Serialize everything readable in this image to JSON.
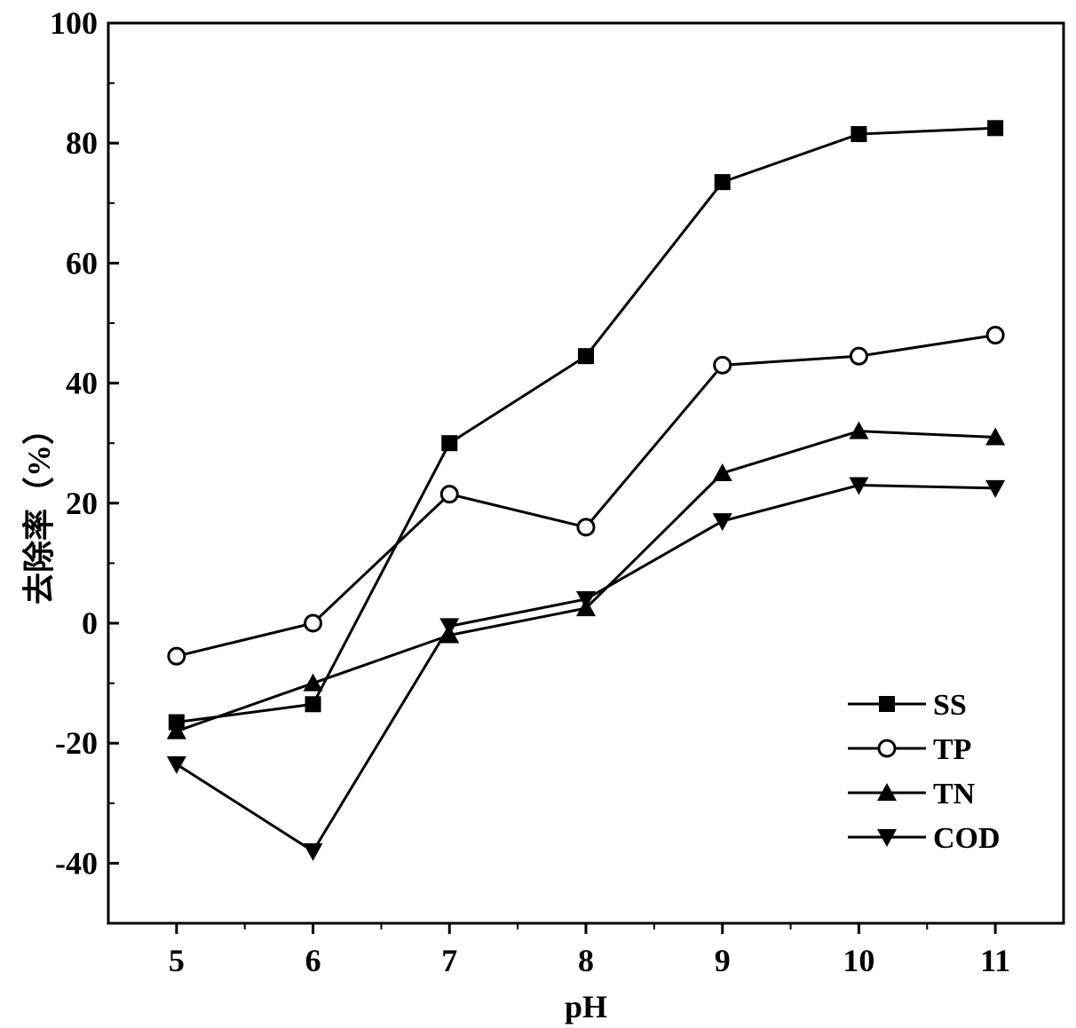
{
  "chart_data": {
    "type": "line",
    "xlabel": "pH",
    "ylabel": "去除率（%）",
    "x": [
      5,
      6,
      7,
      8,
      9,
      10,
      11
    ],
    "xlim": [
      4.5,
      11.5
    ],
    "ylim": [
      -50,
      100
    ],
    "xticks": [
      5,
      6,
      7,
      8,
      9,
      10,
      11
    ],
    "yticks": [
      -40,
      -20,
      0,
      20,
      40,
      60,
      80,
      100
    ],
    "grid": false,
    "legend_position": "bottom-right",
    "series": [
      {
        "name": "SS",
        "marker": "square",
        "values": [
          -16.5,
          -13.5,
          30,
          44.5,
          73.5,
          81.5,
          82.5
        ]
      },
      {
        "name": "TP",
        "marker": "circle",
        "values": [
          -5.5,
          0,
          21.5,
          16,
          43,
          44.5,
          48
        ]
      },
      {
        "name": "TN",
        "marker": "triangle-up",
        "values": [
          -18,
          -10,
          -2,
          2.5,
          25,
          32,
          31
        ]
      },
      {
        "name": "COD",
        "marker": "triangle-down",
        "values": [
          -23.5,
          -38,
          -0.5,
          4,
          17,
          23,
          22.5
        ]
      }
    ]
  }
}
